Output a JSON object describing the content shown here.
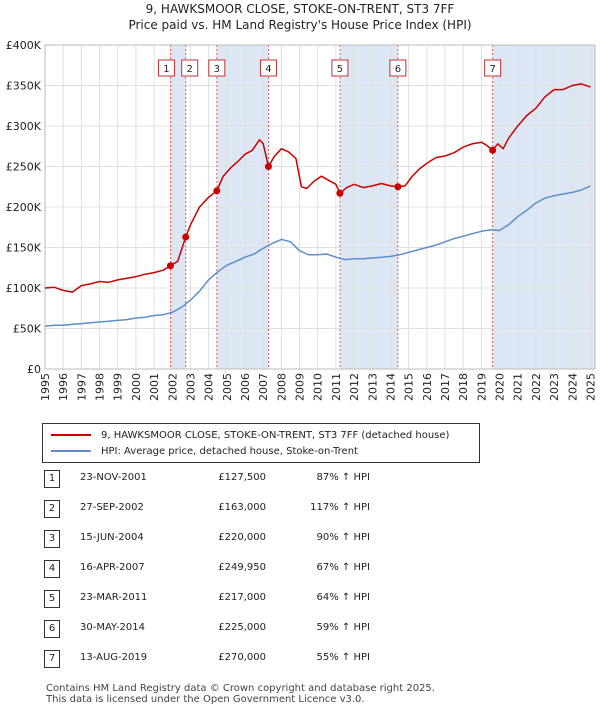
{
  "title_line1": "9, HAWKSMOOR CLOSE, STOKE-ON-TRENT, ST3 7FF",
  "title_line2": "Price paid vs. HM Land Registry's House Price Index (HPI)",
  "legend": {
    "series1": "9, HAWKSMOOR CLOSE, STOKE-ON-TRENT, ST3 7FF (detached house)",
    "series2": "HPI: Average price, detached house, Stoke-on-Trent"
  },
  "colors": {
    "property": "#cc0000",
    "hpi": "#5b8fcc",
    "shade": "#dde6f5",
    "vline": "#e06060",
    "grid": "#e0e0e0"
  },
  "chart_data": {
    "type": "line",
    "x_unit": "year",
    "xlim": [
      1995,
      2025.25
    ],
    "ylim": [
      0,
      400000
    ],
    "y_ticks": [
      0,
      50000,
      100000,
      150000,
      200000,
      250000,
      300000,
      350000,
      400000
    ],
    "y_tick_labels": [
      "£0",
      "£50K",
      "£100K",
      "£150K",
      "£200K",
      "£250K",
      "£300K",
      "£350K",
      "£400K"
    ],
    "x_ticks": [
      1995,
      1996,
      1997,
      1998,
      1999,
      2000,
      2001,
      2002,
      2003,
      2004,
      2005,
      2006,
      2007,
      2008,
      2009,
      2010,
      2011,
      2012,
      2013,
      2014,
      2015,
      2016,
      2017,
      2018,
      2019,
      2020,
      2021,
      2022,
      2023,
      2024,
      2025
    ],
    "x_tick_labels": [
      "1995",
      "1996",
      "1997",
      "1998",
      "1999",
      "2000",
      "2001",
      "2002",
      "2003",
      "2004",
      "2005",
      "2006",
      "2007",
      "2008",
      "2009",
      "2010",
      "2011",
      "2012",
      "2013",
      "2014",
      "2015",
      "2016",
      "2017",
      "2018",
      "2019",
      "2020",
      "2021",
      "2022",
      "2023",
      "2024",
      "2025"
    ],
    "grid": true,
    "series": [
      {
        "name": "9, HAWKSMOOR CLOSE, STOKE-ON-TRENT, ST3 7FF (detached house)",
        "x": [
          1995.0,
          1995.5,
          1996.0,
          1996.5,
          1997.0,
          1997.5,
          1998.0,
          1998.5,
          1999.0,
          1999.5,
          2000.0,
          2000.5,
          2001.0,
          2001.5,
          2001.9,
          2002.3,
          2002.74,
          2003.0,
          2003.5,
          2004.0,
          2004.45,
          2004.8,
          2005.2,
          2005.6,
          2006.0,
          2006.4,
          2006.8,
          2007.0,
          2007.29,
          2007.6,
          2008.0,
          2008.4,
          2008.8,
          2009.1,
          2009.4,
          2009.8,
          2010.2,
          2010.6,
          2011.0,
          2011.22,
          2011.6,
          2012.0,
          2012.5,
          2013.0,
          2013.5,
          2014.0,
          2014.41,
          2014.8,
          2015.2,
          2015.6,
          2016.0,
          2016.5,
          2017.0,
          2017.5,
          2018.0,
          2018.5,
          2019.0,
          2019.3,
          2019.62,
          2019.9,
          2020.2,
          2020.5,
          2021.0,
          2021.5,
          2022.0,
          2022.5,
          2023.0,
          2023.5,
          2024.0,
          2024.5,
          2025.0
        ],
        "y": [
          100000,
          101000,
          97000,
          95000,
          103000,
          105000,
          108000,
          107000,
          110000,
          112000,
          114000,
          117000,
          119000,
          122000,
          127500,
          133000,
          163000,
          178000,
          200000,
          212000,
          220000,
          238000,
          248000,
          256000,
          265000,
          270000,
          283000,
          278000,
          249950,
          262000,
          272000,
          268000,
          260000,
          225000,
          223000,
          232000,
          238000,
          233000,
          228000,
          217000,
          224000,
          228000,
          224000,
          226000,
          229000,
          226000,
          225000,
          226000,
          238000,
          247000,
          254000,
          261000,
          263000,
          267000,
          274000,
          278000,
          280000,
          276000,
          270000,
          278000,
          272000,
          285000,
          300000,
          313000,
          322000,
          336000,
          345000,
          345000,
          350000,
          352000,
          348000
        ]
      },
      {
        "name": "HPI: Average price, detached house, Stoke-on-Trent",
        "x": [
          1995.0,
          1995.5,
          1996.0,
          1996.5,
          1997.0,
          1997.5,
          1998.0,
          1998.5,
          1999.0,
          1999.5,
          2000.0,
          2000.5,
          2001.0,
          2001.5,
          2002.0,
          2002.5,
          2003.0,
          2003.5,
          2004.0,
          2004.5,
          2005.0,
          2005.5,
          2006.0,
          2006.5,
          2007.0,
          2007.5,
          2008.0,
          2008.5,
          2009.0,
          2009.5,
          2010.0,
          2010.5,
          2011.0,
          2011.5,
          2012.0,
          2012.5,
          2013.0,
          2013.5,
          2014.0,
          2014.5,
          2015.0,
          2015.5,
          2016.0,
          2016.5,
          2017.0,
          2017.5,
          2018.0,
          2018.5,
          2019.0,
          2019.5,
          2020.0,
          2020.5,
          2021.0,
          2021.5,
          2022.0,
          2022.5,
          2023.0,
          2023.5,
          2024.0,
          2024.5,
          2025.0
        ],
        "y": [
          53000,
          54000,
          54000,
          55000,
          56000,
          57000,
          58000,
          59000,
          60000,
          61000,
          63000,
          64000,
          66000,
          67000,
          70000,
          76000,
          85000,
          96000,
          110000,
          120000,
          128000,
          133000,
          138000,
          142000,
          149000,
          155000,
          160000,
          157000,
          146000,
          141000,
          141000,
          142000,
          138000,
          135000,
          136000,
          136000,
          137000,
          138000,
          139000,
          141000,
          144000,
          147000,
          150000,
          153000,
          157000,
          161000,
          164000,
          167000,
          170000,
          172000,
          171000,
          178000,
          188000,
          196000,
          205000,
          211000,
          214000,
          216000,
          218000,
          221000,
          226000
        ]
      }
    ],
    "sales": [
      {
        "label": "1",
        "x": 2001.9,
        "y": 127500
      },
      {
        "label": "2",
        "x": 2002.74,
        "y": 163000
      },
      {
        "label": "3",
        "x": 2004.45,
        "y": 220000
      },
      {
        "label": "4",
        "x": 2007.29,
        "y": 249950
      },
      {
        "label": "5",
        "x": 2011.22,
        "y": 217000
      },
      {
        "label": "6",
        "x": 2014.41,
        "y": 225000
      },
      {
        "label": "7",
        "x": 2019.62,
        "y": 270000
      }
    ],
    "shaded_years": [
      [
        2001.9,
        2002.74
      ],
      [
        2004.45,
        2007.29
      ],
      [
        2011.22,
        2014.41
      ],
      [
        2019.62,
        2025.25
      ]
    ]
  },
  "sales_table": [
    {
      "num": "1",
      "date": "23-NOV-2001",
      "price": "£127,500",
      "hpi": "87% ↑ HPI"
    },
    {
      "num": "2",
      "date": "27-SEP-2002",
      "price": "£163,000",
      "hpi": "117% ↑ HPI"
    },
    {
      "num": "3",
      "date": "15-JUN-2004",
      "price": "£220,000",
      "hpi": "90% ↑ HPI"
    },
    {
      "num": "4",
      "date": "16-APR-2007",
      "price": "£249,950",
      "hpi": "67% ↑ HPI"
    },
    {
      "num": "5",
      "date": "23-MAR-2011",
      "price": "£217,000",
      "hpi": "64% ↑ HPI"
    },
    {
      "num": "6",
      "date": "30-MAY-2014",
      "price": "£225,000",
      "hpi": "59% ↑ HPI"
    },
    {
      "num": "7",
      "date": "13-AUG-2019",
      "price": "£270,000",
      "hpi": "55% ↑ HPI"
    }
  ],
  "footer_line1": "Contains HM Land Registry data © Crown copyright and database right 2025.",
  "footer_line2": "This data is licensed under the Open Government Licence v3.0."
}
